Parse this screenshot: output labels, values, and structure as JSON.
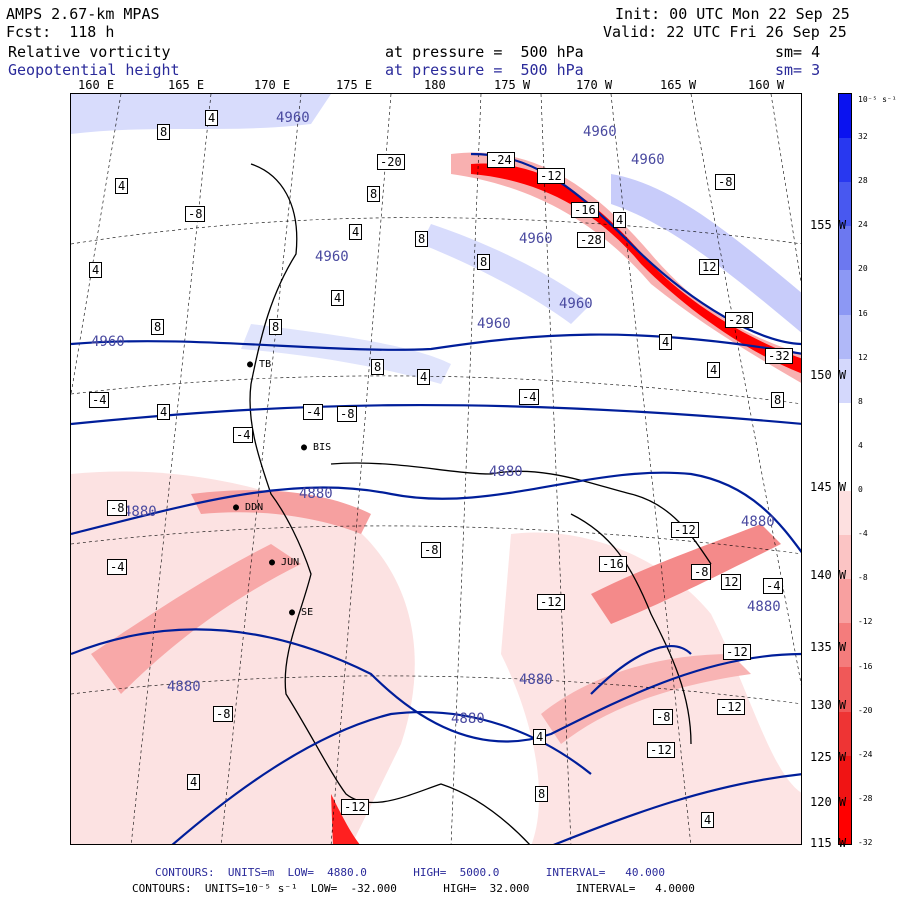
{
  "header": {
    "model": "AMPS 2.67-km MPAS",
    "fcst": "Fcst:  118 h",
    "init": "Init: 00 UTC Mon 22 Sep 25",
    "valid": "Valid: 22 UTC Fri 26 Sep 25",
    "field1_name": "Relative vorticity",
    "field1_level": "at pressure =  500 hPa",
    "field1_sm": "sm= 4",
    "field2_name": "Geopotential height",
    "field2_level": "at pressure =  500 hPa",
    "field2_sm": "sm= 3"
  },
  "lon_labels": [
    "160 E",
    "165 E",
    "170 E",
    "175 E",
    "180",
    "175 W",
    "170 W",
    "165 W",
    "160 W"
  ],
  "lat_labels": [
    "155 W",
    "150 W",
    "145 W",
    "140 W",
    "135 W",
    "130 W",
    "125 W",
    "120 W",
    "115 W"
  ],
  "colorbar": {
    "unit": "10⁻⁵ s⁻¹",
    "ticks": [
      "32",
      "28",
      "24",
      "20",
      "16",
      "12",
      "8",
      "4",
      "0",
      "-4",
      "-8",
      "-12",
      "-16",
      "-20",
      "-24",
      "-28",
      "-32"
    ],
    "colors": [
      "#0a12f0",
      "#2838f0",
      "#4858f0",
      "#6c78f0",
      "#8c98f4",
      "#b0b8f8",
      "#d4d8fc",
      "#ffffff",
      "#ffffff",
      "#fde0e0",
      "#fbc4c4",
      "#f8a0a0",
      "#f47c7c",
      "#f05858",
      "#ee3434",
      "#f01414",
      "#ff0000"
    ]
  },
  "map_labels": {
    "height": [
      "4960",
      "4960",
      "4960",
      "4960",
      "4960",
      "4960",
      "4960",
      "4960",
      "4880",
      "4880",
      "4880",
      "4880",
      "4880",
      "4880",
      "4880",
      "4880"
    ],
    "vort_pos": [
      "8",
      "4",
      "8",
      "4",
      "4",
      "8",
      "4",
      "8",
      "4",
      "8",
      "12",
      "4",
      "4",
      "8",
      "4",
      "4",
      "4",
      "8",
      "8",
      "4",
      "12",
      "4",
      "4",
      "8"
    ],
    "vort_neg": [
      "-8",
      "-20",
      "-24",
      "-12",
      "-16",
      "-28",
      "-32",
      "-28",
      "-8",
      "-4",
      "-4",
      "-4",
      "-8",
      "-4",
      "-8",
      "-12",
      "-16",
      "-12",
      "-8",
      "-4",
      "-8",
      "-12",
      "-12",
      "-8",
      "-4",
      "-8",
      "-12",
      "-12"
    ],
    "stations": [
      "BIS",
      "DDN",
      "JUN",
      "SE",
      "TB"
    ]
  },
  "footer": {
    "line1": "CONTOURS:  UNITS=m  LOW=  4880.0       HIGH=  5000.0       INTERVAL=   40.000",
    "line2": "CONTOURS:  UNITS=10⁻⁵ s⁻¹  LOW=  -32.000       HIGH=  32.000       INTERVAL=   4.0000"
  }
}
